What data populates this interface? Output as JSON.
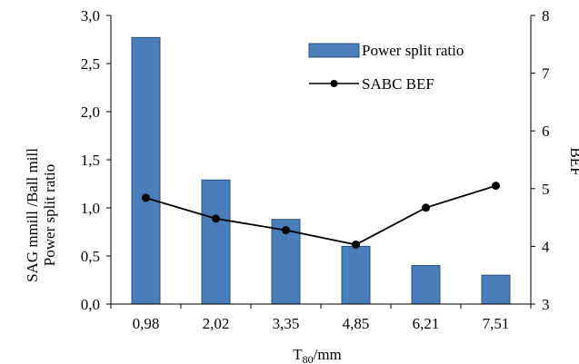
{
  "chart_data": {
    "type": "bar",
    "categories": [
      "0,98",
      "2,02",
      "3,35",
      "4,85",
      "6,21",
      "7,51"
    ],
    "series": [
      {
        "name": "Power split ratio",
        "type": "bar",
        "axis": "left",
        "color": "#4a7ebb",
        "values": [
          2.77,
          1.29,
          0.88,
          0.6,
          0.4,
          0.3
        ]
      },
      {
        "name": "SABC BEF",
        "type": "line",
        "axis": "right",
        "color": "#000000",
        "values": [
          4.84,
          4.48,
          4.28,
          4.03,
          4.67,
          5.05
        ]
      }
    ],
    "ylim_left": [
      0,
      3
    ],
    "yticks_left": [
      "0,0",
      "0,5",
      "1,0",
      "1,5",
      "2,0",
      "2,5",
      "3,0"
    ],
    "ylim_right": [
      3,
      8
    ],
    "yticks_right": [
      "3",
      "4",
      "5",
      "6",
      "7",
      "8"
    ],
    "xlabel_main": "T",
    "xlabel_sub": "80",
    "xlabel_unit": "/mm",
    "ylabel_left_line1": "SAG mmill /Ball mill",
    "ylabel_left_line2": "Power split ratio",
    "ylabel_right": "BEF",
    "legend_position": "top-right",
    "grid": false
  }
}
